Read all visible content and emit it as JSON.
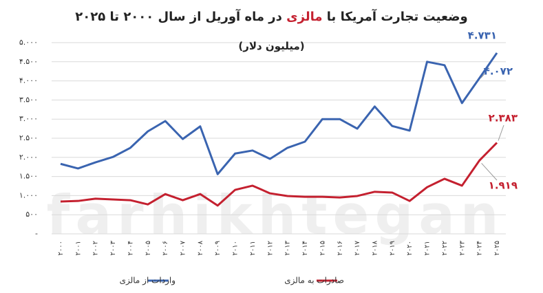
{
  "chart_data": {
    "type": "line",
    "title_parts": [
      "وضعیت تجارت آمریکا با ",
      "مالزی",
      " در ماه آوریل از سال ۲۰۰۰ تا ۲۰۲۵"
    ],
    "subtitle": "(میلیون دلار)",
    "watermark": "farhikhtegan",
    "categories": [
      "۲۰۰۰",
      "۲۰۰۱",
      "۲۰۰۲",
      "۲۰۰۳",
      "۲۰۰۴",
      "۲۰۰۵",
      "۲۰۰۶",
      "۲۰۰۷",
      "۲۰۰۸",
      "۲۰۰۹",
      "۲۰۱۰",
      "۲۰۱۱",
      "۲۰۱۲",
      "۲۰۱۳",
      "۲۰۱۴",
      "۲۰۱۵",
      "۲۰۱۶",
      "۲۰۱۷",
      "۲۰۱۸",
      "۲۰۱۹",
      "۲۰۲۰",
      "۲۰۲۱",
      "۲۰۲۲",
      "۲۰۲۳",
      "۲۰۲۴",
      "۲۰۲۵"
    ],
    "series": [
      {
        "name": "واردات از مالزی",
        "color": "#3a64b0",
        "values": [
          1830,
          1710,
          1870,
          2010,
          2250,
          2680,
          2950,
          2480,
          2810,
          1560,
          2100,
          2180,
          1960,
          2250,
          2410,
          3000,
          3000,
          2750,
          3330,
          2820,
          2700,
          4500,
          4410,
          3420,
          4072,
          4731
        ],
        "value_labels": [
          null,
          null,
          null,
          null,
          null,
          null,
          null,
          null,
          null,
          null,
          null,
          null,
          null,
          null,
          null,
          null,
          null,
          null,
          null,
          null,
          null,
          null,
          null,
          null,
          "۴.۰۷۲",
          "۴.۷۳۱"
        ]
      },
      {
        "name": "صادرات به مالزی",
        "color": "#c4202f",
        "values": [
          845,
          860,
          920,
          900,
          880,
          770,
          1040,
          880,
          1040,
          740,
          1150,
          1260,
          1060,
          990,
          970,
          970,
          950,
          990,
          1100,
          1080,
          860,
          1220,
          1440,
          1260,
          1919,
          2383
        ],
        "value_labels": [
          null,
          null,
          null,
          null,
          null,
          null,
          null,
          null,
          null,
          null,
          null,
          null,
          null,
          null,
          null,
          null,
          null,
          null,
          null,
          null,
          null,
          null,
          null,
          null,
          "۱.۹۱۹",
          "۲.۳۸۳"
        ]
      }
    ],
    "ylim": [
      0,
      5000
    ],
    "yticks": [
      {
        "value": 0,
        "label": "-"
      },
      {
        "value": 500,
        "label": "۵۰۰"
      },
      {
        "value": 1000,
        "label": "۱.۰۰۰"
      },
      {
        "value": 1500,
        "label": "۱.۵۰۰"
      },
      {
        "value": 2000,
        "label": "۲.۰۰۰"
      },
      {
        "value": 2500,
        "label": "۲.۵۰۰"
      },
      {
        "value": 3000,
        "label": "۳.۰۰۰"
      },
      {
        "value": 3500,
        "label": "۳.۵۰۰"
      },
      {
        "value": 4000,
        "label": "۴.۰۰۰"
      },
      {
        "value": 4500,
        "label": "۴.۵۰۰"
      },
      {
        "value": 5000,
        "label": "۵.۰۰۰"
      }
    ],
    "grid": true,
    "legend": "bottom"
  }
}
